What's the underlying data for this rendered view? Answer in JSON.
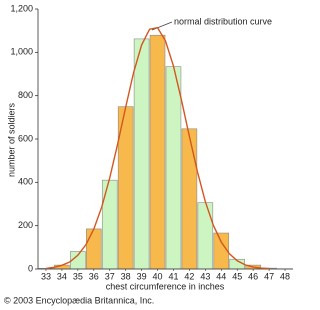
{
  "chart_data": {
    "type": "histogram",
    "x_label": "chest circumference in inches",
    "y_label": "number of soldiers",
    "annotation": "normal distribution curve",
    "credit": "© 2003 Encyclopædia Britannica, Inc.",
    "x": [
      33,
      34,
      35,
      36,
      37,
      38,
      39,
      40,
      41,
      42,
      43,
      44,
      45,
      46,
      47,
      48
    ],
    "values": [
      3,
      18,
      81,
      185,
      410,
      749,
      1062,
      1079,
      934,
      647,
      306,
      166,
      45,
      18,
      4,
      1
    ],
    "colors": [
      "#cdf5c2",
      "#f8b94c"
    ],
    "curve": {
      "color": "#d4561f",
      "x": [
        33,
        33.5,
        34,
        34.5,
        35,
        35.5,
        36,
        36.5,
        37,
        37.5,
        38,
        38.5,
        39,
        39.5,
        40,
        40.5,
        41,
        41.5,
        42,
        42.5,
        43,
        43.5,
        44,
        44.5,
        45,
        45.5,
        46,
        46.5,
        47
      ],
      "values": [
        3,
        8,
        17,
        33,
        63,
        111,
        184,
        287,
        420,
        578,
        747,
        907,
        1034,
        1107,
        1114,
        1053,
        936,
        781,
        612,
        450,
        311,
        202,
        124,
        71,
        38,
        19,
        9,
        4,
        2
      ]
    },
    "xlim": [
      32.5,
      48.5
    ],
    "xticks": [
      33,
      34,
      35,
      36,
      37,
      38,
      39,
      40,
      41,
      42,
      43,
      44,
      45,
      46,
      47,
      48
    ],
    "ylim": [
      0,
      1200
    ],
    "yticks": [
      0,
      200,
      400,
      600,
      800,
      {
        "value": 1000,
        "label": "1,000"
      },
      {
        "value": 1200,
        "label": "1,200"
      }
    ]
  }
}
